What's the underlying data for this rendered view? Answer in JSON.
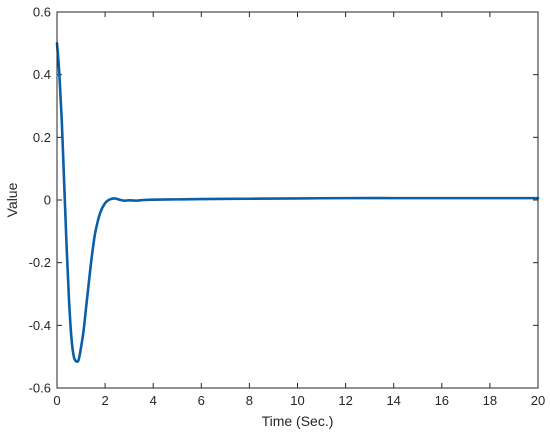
{
  "chart_data": {
    "type": "line",
    "title": "",
    "xlabel": "Time (Sec.)",
    "ylabel": "Value",
    "xlim": [
      0,
      20
    ],
    "ylim": [
      -0.6,
      0.6
    ],
    "xticks": [
      0,
      2,
      4,
      6,
      8,
      10,
      12,
      14,
      16,
      18,
      20
    ],
    "yticks": [
      -0.6,
      -0.4,
      -0.2,
      0,
      0.2,
      0.4,
      0.6
    ],
    "xtick_labels": [
      "0",
      "2",
      "4",
      "6",
      "8",
      "10",
      "12",
      "14",
      "16",
      "18",
      "20"
    ],
    "ytick_labels": [
      "-0.6",
      "-0.4",
      "-0.2",
      "0",
      "0.2",
      "0.4",
      "0.6"
    ],
    "grid": false,
    "box": true,
    "series": [
      {
        "color": "#0b5fa5",
        "x": [
          0,
          0.1,
          0.2,
          0.3,
          0.4,
          0.5,
          0.6,
          0.7,
          0.8,
          0.9,
          1.0,
          1.1,
          1.2,
          1.3,
          1.4,
          1.5,
          1.6,
          1.8,
          2.0,
          2.2,
          2.4,
          2.6,
          2.8,
          3.0,
          3.3,
          3.6,
          4.0,
          5,
          6,
          8,
          10,
          12,
          14,
          16,
          18,
          20
        ],
        "y": [
          0.5,
          0.4,
          0.25,
          0.05,
          -0.15,
          -0.32,
          -0.44,
          -0.5,
          -0.515,
          -0.51,
          -0.47,
          -0.42,
          -0.35,
          -0.28,
          -0.21,
          -0.15,
          -0.1,
          -0.04,
          -0.01,
          0.002,
          0.005,
          0.001,
          -0.002,
          -0.001,
          -0.002,
          0.0,
          0.001,
          0.002,
          0.003,
          0.004,
          0.005,
          0.006,
          0.006,
          0.006,
          0.006,
          0.006
        ]
      }
    ]
  }
}
